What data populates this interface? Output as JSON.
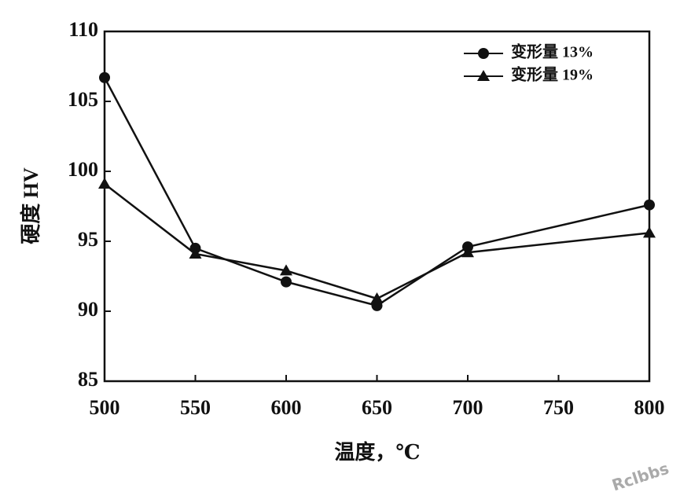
{
  "chart_data": {
    "type": "line",
    "x_label": "温度，℃",
    "y_label": "硬度 HV",
    "x": [
      500,
      550,
      600,
      650,
      700,
      800
    ],
    "series": [
      {
        "name": "变形量 13%",
        "color": "#111111",
        "marker": "circle",
        "values": [
          106.7,
          94.5,
          92.1,
          90.4,
          94.6,
          97.6
        ]
      },
      {
        "name": "变形量 19%",
        "color": "#111111",
        "marker": "triangle",
        "values": [
          99.1,
          94.1,
          92.9,
          90.9,
          94.2,
          95.6
        ]
      }
    ],
    "xlim": [
      500,
      800
    ],
    "xticks": [
      500,
      550,
      600,
      650,
      700,
      750,
      800
    ],
    "ylim": [
      85,
      110
    ],
    "yticks": [
      85,
      90,
      95,
      100,
      105,
      110
    ],
    "legend": "upper-right",
    "watermark": "Rclbbs"
  }
}
